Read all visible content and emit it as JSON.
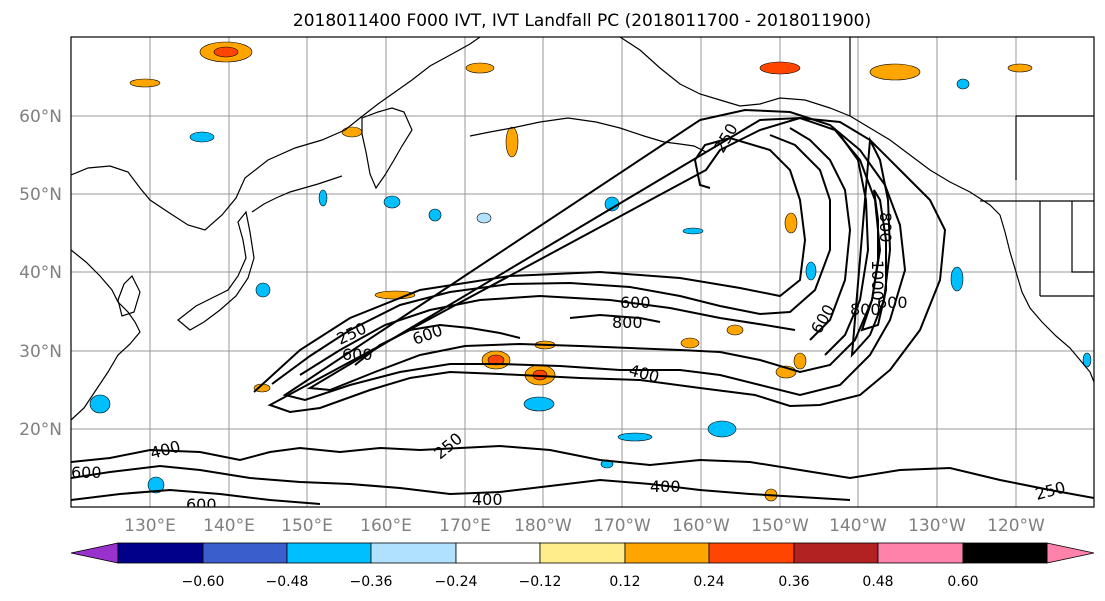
{
  "title": "2018011400 F000 IVT, IVT Landfall PC (2018011700 - 2018011900)",
  "lat_labels": [
    "60°N",
    "50°N",
    "40°N",
    "30°N",
    "20°N"
  ],
  "lon_labels": [
    "130°E",
    "140°E",
    "150°E",
    "160°E",
    "170°E",
    "180°W",
    "170°W",
    "160°W",
    "150°W",
    "140°W",
    "130°W",
    "120°W"
  ],
  "colorbar": {
    "colors": [
      "#9932cc",
      "#00008b",
      "#3a5fcd",
      "#00bfff",
      "#b0e2ff",
      "#ffffff",
      "#ffec8b",
      "#ffa500",
      "#ff4500",
      "#b22222",
      "#ff82ab"
    ],
    "tick_labels": [
      "−0.60",
      "−0.48",
      "−0.36",
      "−0.24",
      "−0.12",
      "0.12",
      "0.24",
      "0.36",
      "0.48",
      "0.60"
    ]
  },
  "contour_labels": [
    "250",
    "600",
    "800",
    "600",
    "250",
    "600",
    "600",
    "800",
    "400",
    "800",
    "1000",
    "600",
    "600",
    "400",
    "250",
    "600",
    "400",
    "400",
    "250"
  ],
  "styles": {
    "contour_color": "#000000",
    "grid_color": "#999999",
    "axis_label_color": "#808080",
    "coast_color": "#000000"
  }
}
